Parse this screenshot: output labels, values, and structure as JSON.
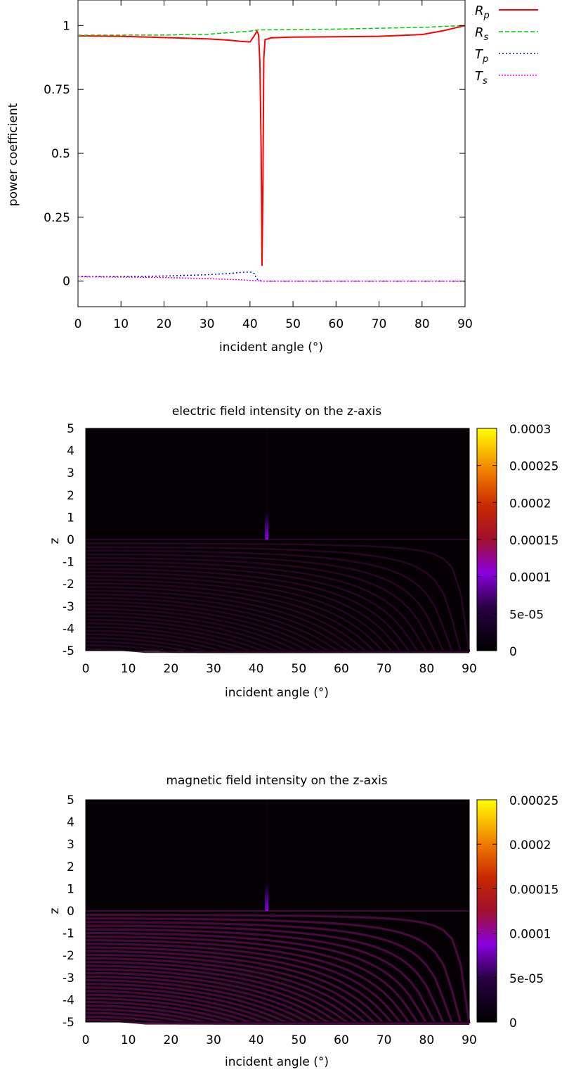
{
  "chart_data": [
    {
      "type": "line",
      "title": "",
      "xlabel": "incident angle (°)",
      "ylabel": "power coefficient",
      "xlim": [
        0,
        90
      ],
      "ylim": [
        -0.1,
        1.1
      ],
      "x_ticks": [
        "0",
        "10",
        "20",
        "30",
        "40",
        "50",
        "60",
        "70",
        "80",
        "90"
      ],
      "y_ticks": [
        "0",
        "0.25",
        "0.5",
        "0.75",
        "1"
      ],
      "grid": false,
      "legend_position": "right",
      "series": [
        {
          "name": "Rp",
          "label_main": "R",
          "label_sub": "p",
          "color": "#ff0000",
          "dash": "solid",
          "x": [
            0,
            10,
            20,
            30,
            35,
            38,
            40,
            41,
            41.6,
            42.0,
            42.3,
            42.6,
            42.8,
            43.0,
            43.2,
            43.5,
            45,
            50,
            60,
            70,
            80,
            85,
            90
          ],
          "y": [
            0.96,
            0.958,
            0.953,
            0.948,
            0.943,
            0.938,
            0.936,
            0.96,
            0.978,
            0.965,
            0.85,
            0.5,
            0.06,
            0.4,
            0.87,
            0.945,
            0.952,
            0.955,
            0.956,
            0.958,
            0.965,
            0.98,
            1.0
          ]
        },
        {
          "name": "Rs",
          "label_main": "R",
          "label_sub": "s",
          "color": "#00cc00",
          "dash": "6,3",
          "x": [
            0,
            20,
            30,
            40,
            42,
            60,
            80,
            90
          ],
          "y": [
            0.962,
            0.963,
            0.966,
            0.978,
            0.983,
            0.986,
            0.993,
            1.0
          ]
        },
        {
          "name": "Tp",
          "label_main": "T",
          "label_sub": "p",
          "color": "#0000ff",
          "dash": "2,3",
          "x": [
            0,
            10,
            20,
            30,
            35,
            38,
            40,
            41,
            41.5,
            42.0,
            42.5,
            43,
            50,
            60,
            70,
            80,
            90
          ],
          "y": [
            0.018,
            0.018,
            0.02,
            0.025,
            0.03,
            0.034,
            0.036,
            0.03,
            0.01,
            0.003,
            0.001,
            0,
            0,
            0,
            0,
            0,
            0
          ]
        },
        {
          "name": "Ts",
          "label_main": "T",
          "label_sub": "s",
          "color": "#ff00ff",
          "dash": "2,2",
          "x": [
            0,
            10,
            20,
            30,
            38,
            41,
            42,
            43,
            50,
            60,
            70,
            80,
            90
          ],
          "y": [
            0.017,
            0.016,
            0.014,
            0.01,
            0.005,
            0.002,
            0.001,
            0,
            0,
            0,
            0,
            0,
            0
          ]
        }
      ]
    },
    {
      "type": "heatmap",
      "title": "electric field intensity on the z-axis",
      "xlabel": "incident angle (°)",
      "ylabel": "z",
      "xlim": [
        0,
        90
      ],
      "ylim": [
        -5,
        5
      ],
      "x_ticks": [
        "0",
        "10",
        "20",
        "30",
        "40",
        "50",
        "60",
        "70",
        "80",
        "90"
      ],
      "y_ticks": [
        "5",
        "4",
        "3",
        "2",
        "1",
        "0",
        "-1",
        "-2",
        "-3",
        "-4",
        "-5"
      ],
      "colorbar_range": [
        0,
        0.0003
      ],
      "colorbar_ticks": [
        "0.0003",
        "0.00025",
        "0.0002",
        "0.00015",
        "0.0001",
        "5e-05",
        "0"
      ],
      "colormap": [
        "#000000",
        "#4b0082",
        "#9400d3",
        "#b22222",
        "#ff6600",
        "#ffcc00",
        "#ffff00"
      ],
      "peak_angle": 42.5
    },
    {
      "type": "heatmap",
      "title": "magnetic field intensity on the z-axis",
      "xlabel": "incident angle (°)",
      "ylabel": "z",
      "xlim": [
        0,
        90
      ],
      "ylim": [
        -5,
        5
      ],
      "x_ticks": [
        "0",
        "10",
        "20",
        "30",
        "40",
        "50",
        "60",
        "70",
        "80",
        "90"
      ],
      "y_ticks": [
        "5",
        "4",
        "3",
        "2",
        "1",
        "0",
        "-1",
        "-2",
        "-3",
        "-4",
        "-5"
      ],
      "colorbar_range": [
        0,
        0.00025
      ],
      "colorbar_ticks": [
        "0.00025",
        "0.0002",
        "0.00015",
        "0.0001",
        "5e-05",
        "0"
      ],
      "colormap": [
        "#000000",
        "#4b0082",
        "#9400d3",
        "#b22222",
        "#ff6600",
        "#ffcc00",
        "#ffff00"
      ],
      "peak_angle": 42.5
    }
  ]
}
